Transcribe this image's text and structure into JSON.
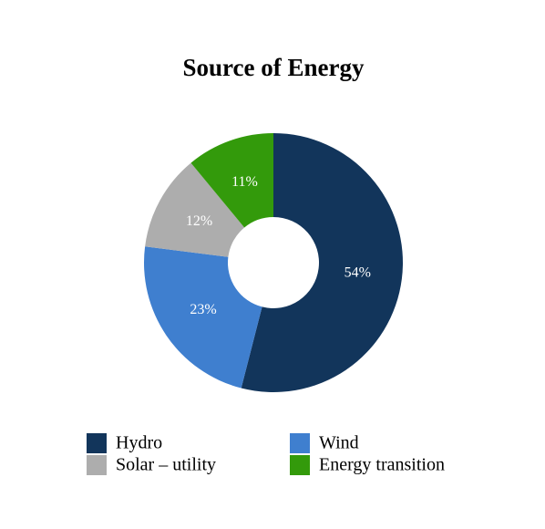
{
  "chart_data": {
    "type": "donut",
    "title": "Source of Energy",
    "categories": [
      "Hydro",
      "Wind",
      "Solar – utility",
      "Energy transition"
    ],
    "values": [
      54,
      23,
      12,
      11
    ],
    "value_labels": [
      "54%",
      "23%",
      "12%",
      "11%"
    ],
    "colors": [
      "#12355b",
      "#3f7fcf",
      "#adadad",
      "#339a0b"
    ],
    "legend": "bottom"
  }
}
